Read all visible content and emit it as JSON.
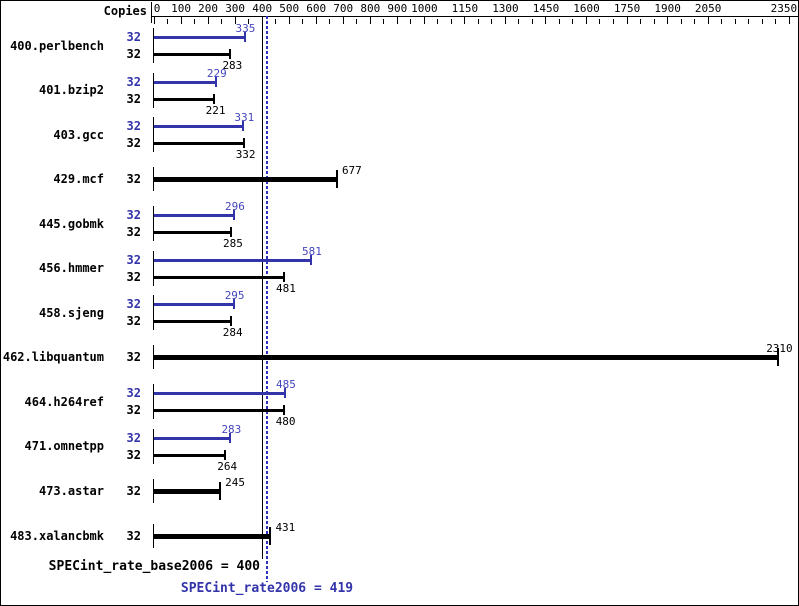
{
  "header": {
    "copies_label": "Copies"
  },
  "colors": {
    "peak_bar": "#3333aa",
    "base_bar": "#000000",
    "peak_value_text": "#4545bf",
    "base_value_text": "#000000",
    "peak_copies_text": "#3333aa",
    "base_copies_text": "#000000",
    "base_ref_line": "#000000",
    "peak_ref_line": "#3030c0",
    "axis": "#000000"
  },
  "chart_data": {
    "type": "bar",
    "orientation": "horizontal",
    "x_axis": {
      "range": [
        0,
        2350
      ],
      "major_ticks": [
        0,
        100,
        200,
        300,
        400,
        500,
        600,
        700,
        800,
        900,
        1000,
        1150,
        1300,
        1450,
        1600,
        1750,
        1900,
        2050,
        2350
      ],
      "minor_tick_step": 50
    },
    "copies_column_header": "Copies",
    "benchmarks": [
      {
        "name": "400.perlbench",
        "copies": 32,
        "peak": 335,
        "base": 283,
        "single_bar": false
      },
      {
        "name": "401.bzip2",
        "copies": 32,
        "peak": 229,
        "base": 221,
        "single_bar": false
      },
      {
        "name": "403.gcc",
        "copies": 32,
        "peak": 331,
        "base": 332,
        "single_bar": false
      },
      {
        "name": "429.mcf",
        "copies": 32,
        "peak": null,
        "base": 677,
        "single_bar": true
      },
      {
        "name": "445.gobmk",
        "copies": 32,
        "peak": 296,
        "base": 285,
        "single_bar": false
      },
      {
        "name": "456.hmmer",
        "copies": 32,
        "peak": 581,
        "base": 481,
        "single_bar": false
      },
      {
        "name": "458.sjeng",
        "copies": 32,
        "peak": 295,
        "base": 284,
        "single_bar": false
      },
      {
        "name": "462.libquantum",
        "copies": 32,
        "peak": null,
        "base": 2310,
        "single_bar": true
      },
      {
        "name": "464.h264ref",
        "copies": 32,
        "peak": 485,
        "base": 480,
        "single_bar": false
      },
      {
        "name": "471.omnetpp",
        "copies": 32,
        "peak": 283,
        "base": 264,
        "single_bar": false
      },
      {
        "name": "473.astar",
        "copies": 32,
        "peak": null,
        "base": 245,
        "single_bar": true
      },
      {
        "name": "483.xalancbmk",
        "copies": 32,
        "peak": null,
        "base": 431,
        "single_bar": true
      }
    ],
    "reference_lines": [
      {
        "id": "base",
        "value": 400,
        "style": "solid",
        "label": "SPECint_rate_base2006 = 400"
      },
      {
        "id": "peak",
        "value": 419,
        "style": "dotted",
        "label": "SPECint_rate2006 = 419"
      }
    ]
  }
}
